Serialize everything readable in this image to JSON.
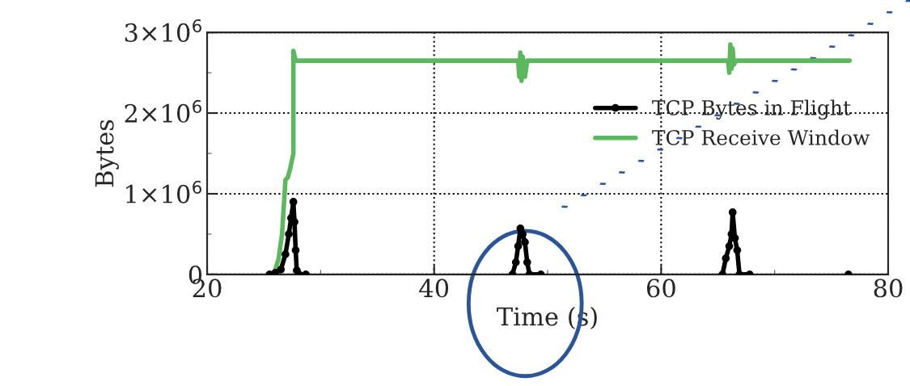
{
  "chart_data": {
    "type": "line",
    "xlabel": "Time (s)",
    "ylabel": "Bytes",
    "xlim": [
      20,
      80
    ],
    "xticks": [
      20,
      {
        "value": 30,
        "label": null
      },
      40,
      {
        "value": 50,
        "label": null
      },
      60,
      {
        "value": 70,
        "label": null
      },
      80
    ],
    "ylim": [
      0,
      3000000
    ],
    "yticks": [
      0,
      {
        "value": 500000,
        "label": null
      },
      {
        "value": 1000000,
        "label": "1×10$^{6}$"
      },
      {
        "value": 1500000,
        "label": null
      },
      {
        "value": 2000000,
        "label": "2×10$^{6}$"
      },
      {
        "value": 2500000,
        "label": null
      },
      {
        "value": 3000000,
        "label": "3×10$^{6}$"
      }
    ],
    "grid": true,
    "legend": "right",
    "series": [
      {
        "name": "TCP Bytes in Flight",
        "color": "#000000",
        "marker": "circle",
        "x": [
          25.5,
          26.0,
          26.5,
          26.9,
          27.2,
          27.4,
          27.6,
          27.7,
          27.8,
          27.9,
          28.1,
          28.7,
          30.0,
          46.9,
          47.2,
          47.4,
          47.6,
          47.8,
          48.0,
          48.2,
          48.4,
          49.4,
          50.0,
          65.4,
          65.7,
          66.0,
          66.2,
          66.3,
          66.5,
          66.7,
          66.9,
          67.8,
          70.0,
          76.5
        ],
        "values": [
          0,
          20000,
          60000,
          250000,
          500000,
          700000,
          900000,
          650000,
          300000,
          50000,
          0,
          0,
          null,
          0,
          150000,
          350000,
          570000,
          500000,
          400000,
          150000,
          0,
          0,
          null,
          0,
          200000,
          350000,
          500000,
          770000,
          450000,
          300000,
          0,
          0,
          null,
          0
        ]
      },
      {
        "name": "TCP Receive Window",
        "color": "#5cb85c",
        "x": [
          26.0,
          26.3,
          26.6,
          26.9,
          27.1,
          27.3,
          27.6,
          27.6,
          27.8,
          47.4,
          47.5,
          47.6,
          47.7,
          47.8,
          48.0,
          48.2,
          48.4,
          65.9,
          66.0,
          66.1,
          66.2,
          66.3,
          66.4,
          66.6,
          76.6
        ],
        "values": [
          50000,
          200000,
          500000,
          1170000,
          1200000,
          1300000,
          1500000,
          2770000,
          2650000,
          2650000,
          2450000,
          2750000,
          2400000,
          2700000,
          2450000,
          2650000,
          2650000,
          2650000,
          2500000,
          2850000,
          2550000,
          2800000,
          2600000,
          2650000,
          2650000
        ]
      }
    ]
  }
}
